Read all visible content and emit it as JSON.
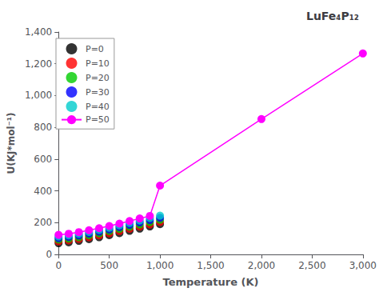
{
  "chart_data": {
    "type": "scatter",
    "title": "LuFe₄P₁₂",
    "xlabel": "Temperature (K)",
    "ylabel": "U(KJ*mol⁻¹)",
    "xlim": [
      0,
      3000
    ],
    "ylim": [
      0,
      1400
    ],
    "xticks": [
      0,
      500,
      1000,
      1500,
      2000,
      2500,
      3000
    ],
    "yticks": [
      0,
      200,
      400,
      600,
      800,
      1000,
      1200,
      1400
    ],
    "grid": false,
    "legend": "upper left",
    "marker": "circle",
    "series": [
      {
        "name": "P=0",
        "type": "scatter",
        "color": "#000000",
        "x": [
          0,
          100,
          200,
          300,
          400,
          500,
          600,
          700,
          800,
          900,
          1000
        ],
        "values": [
          70,
          76,
          85,
          96,
          108,
          121,
          134,
          148,
          162,
          176,
          190
        ]
      },
      {
        "name": "P=10",
        "type": "scatter",
        "color": "#ff0000",
        "x": [
          0,
          100,
          200,
          300,
          400,
          500,
          600,
          700,
          800,
          900,
          1000
        ],
        "values": [
          82,
          88,
          97,
          108,
          120,
          133,
          147,
          161,
          175,
          189,
          204
        ]
      },
      {
        "name": "P=20",
        "type": "scatter",
        "color": "#00cc00",
        "x": [
          0,
          100,
          200,
          300,
          400,
          500,
          600,
          700,
          800,
          900,
          1000
        ],
        "values": [
          93,
          99,
          108,
          120,
          132,
          146,
          160,
          174,
          188,
          203,
          218
        ]
      },
      {
        "name": "P=30",
        "type": "scatter",
        "color": "#0000ff",
        "x": [
          0,
          100,
          200,
          300,
          400,
          500,
          600,
          700,
          800,
          900,
          1000
        ],
        "values": [
          103,
          110,
          119,
          131,
          143,
          157,
          172,
          186,
          201,
          216,
          231
        ]
      },
      {
        "name": "P=40",
        "type": "scatter",
        "color": "#00cccc",
        "x": [
          0,
          100,
          200,
          300,
          400,
          500,
          600,
          700,
          800,
          900,
          1000
        ],
        "values": [
          113,
          120,
          130,
          141,
          154,
          168,
          183,
          198,
          213,
          229,
          244
        ]
      },
      {
        "name": "P=50",
        "type": "line",
        "color": "#ff00ff",
        "x": [
          0,
          100,
          200,
          300,
          400,
          500,
          600,
          700,
          800,
          900,
          1000,
          2000,
          3000
        ],
        "values": [
          123,
          130,
          140,
          152,
          165,
          179,
          194,
          210,
          226,
          242,
          433,
          852,
          1265
        ]
      }
    ]
  }
}
